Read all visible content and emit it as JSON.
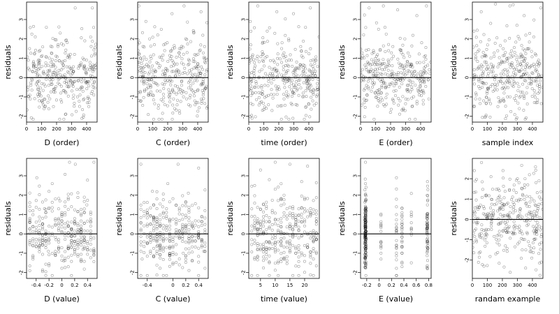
{
  "chart_data": [
    {
      "type": "scatter",
      "xlabel": "D (order)",
      "ylabel": "residuals",
      "xlim": [
        0,
        470
      ],
      "ylim": [
        -2.3,
        3.9
      ],
      "xticks": [
        0,
        100,
        200,
        300,
        400
      ],
      "yticks": [
        -2,
        -1,
        0,
        1,
        2,
        3
      ],
      "hline": 0,
      "pattern": "order",
      "x": [
        12,
        25,
        41,
        58,
        74,
        90,
        103,
        117,
        132,
        148,
        163,
        179,
        196,
        210,
        228,
        244,
        259,
        275,
        292,
        308,
        324,
        339,
        356,
        372,
        388,
        405,
        421,
        438,
        452,
        466
      ],
      "y": [
        0.9,
        -1.1,
        0.3,
        2.1,
        -0.6,
        1.4,
        -1.2,
        0.2,
        2.6,
        -0.4,
        0.8,
        -1.5,
        0.1,
        1.7,
        -0.8,
        0.5,
        -1.9,
        0.3,
        1.2,
        -0.3,
        3.6,
        -1.0,
        0.6,
        -0.5,
        1.9,
        -1.3,
        0.4,
        3.6,
        -0.2,
        0.7
      ]
    },
    {
      "type": "scatter",
      "xlabel": "C (order)",
      "ylabel": "residuals",
      "xlim": [
        0,
        470
      ],
      "ylim": [
        -2.3,
        3.9
      ],
      "xticks": [
        0,
        100,
        200,
        300,
        400
      ],
      "yticks": [
        -2,
        -1,
        0,
        1,
        2,
        3
      ],
      "hline": 0,
      "pattern": "order",
      "x": [
        8,
        22,
        38,
        55,
        70,
        86,
        101,
        118,
        134,
        150,
        166,
        181,
        197,
        213,
        229,
        246,
        262,
        278,
        293,
        309,
        326,
        342,
        357,
        374,
        390,
        406,
        422,
        437,
        454,
        467
      ],
      "y": [
        3.7,
        -1.2,
        0.5,
        2.9,
        -0.5,
        1.1,
        -0.9,
        0.3,
        2.2,
        -0.7,
        0.9,
        -1.4,
        1.8,
        -0.2,
        3.3,
        -1.6,
        0.4,
        1.5,
        -0.4,
        3.7,
        -1.1,
        0.7,
        -0.6,
        2.3,
        -1.3,
        0.2,
        3.4,
        -0.3,
        1.0,
        -1.5
      ]
    },
    {
      "type": "scatter",
      "xlabel": "time (order)",
      "ylabel": "residuals",
      "xlim": [
        0,
        470
      ],
      "ylim": [
        -2.3,
        3.9
      ],
      "xticks": [
        0,
        100,
        200,
        300,
        400
      ],
      "yticks": [
        -2,
        -1,
        0,
        1,
        2,
        3
      ],
      "hline": 0,
      "pattern": "order",
      "x": [
        10,
        27,
        43,
        60,
        76,
        92,
        107,
        123,
        139,
        155,
        171,
        187,
        203,
        219,
        235,
        251,
        266,
        283,
        298,
        314,
        330,
        346,
        362,
        378,
        394,
        410,
        426,
        442,
        457,
        468
      ],
      "y": [
        2.9,
        -0.8,
        0.6,
        3.7,
        -1.3,
        1.2,
        -0.4,
        2.4,
        0.1,
        -1.7,
        0.8,
        3.4,
        -0.6,
        1.5,
        -1.1,
        0.3,
        2.0,
        -0.3,
        3.3,
        -1.4,
        0.5,
        1.6,
        -0.8,
        2.6,
        -0.2,
        3.6,
        -1.2,
        0.9,
        -0.5,
        2.1
      ]
    },
    {
      "type": "scatter",
      "xlabel": "E (order)",
      "ylabel": "residuals",
      "xlim": [
        0,
        470
      ],
      "ylim": [
        -2.3,
        3.9
      ],
      "xticks": [
        0,
        100,
        200,
        300,
        400
      ],
      "yticks": [
        -2,
        -1,
        0,
        1,
        2,
        3
      ],
      "hline": 0,
      "pattern": "order",
      "x": [
        9,
        24,
        40,
        57,
        72,
        88,
        104,
        120,
        136,
        152,
        168,
        184,
        199,
        215,
        231,
        247,
        263,
        279,
        295,
        311,
        327,
        343,
        359,
        375,
        391,
        407,
        423,
        439,
        455,
        467
      ],
      "y": [
        1.0,
        -1.3,
        0.4,
        3.6,
        -0.7,
        1.3,
        -1.0,
        2.5,
        0.2,
        3.7,
        -0.5,
        0.9,
        -1.8,
        1.6,
        -0.3,
        3.5,
        -1.2,
        0.6,
        2.0,
        -0.4,
        1.1,
        -1.5,
        0.3,
        3.2,
        -0.9,
        1.8,
        -0.2,
        3.7,
        -1.1,
        0.8
      ]
    },
    {
      "type": "scatter",
      "xlabel": "sample index",
      "ylabel": "residuals",
      "xlim": [
        0,
        470
      ],
      "ylim": [
        -2.3,
        3.9
      ],
      "xticks": [
        0,
        100,
        200,
        300,
        400
      ],
      "yticks": [
        -2,
        -1,
        0,
        1,
        2,
        3
      ],
      "hline": 0,
      "pattern": "order",
      "x": [
        11,
        26,
        42,
        59,
        75,
        91,
        106,
        122,
        138,
        154,
        170,
        186,
        202,
        218,
        234,
        250,
        265,
        282,
        297,
        313,
        329,
        345,
        361,
        377,
        393,
        409,
        425,
        441,
        456,
        468
      ],
      "y": [
        2.4,
        -0.9,
        0.5,
        3.4,
        -1.2,
        1.1,
        -0.6,
        2.8,
        0.3,
        3.8,
        -1.5,
        0.7,
        -0.3,
        1.9,
        -1.0,
        3.7,
        -0.4,
        1.3,
        2.7,
        -1.6,
        0.6,
        3.2,
        -0.8,
        1.5,
        -0.2,
        2.1,
        -1.3,
        0.9,
        3.6,
        -0.5
      ]
    },
    {
      "type": "scatter",
      "xlabel": "D (value)",
      "ylabel": "residuals",
      "xlim": [
        -0.55,
        0.55
      ],
      "ylim": [
        -2.3,
        3.9
      ],
      "xticks": [
        -0.4,
        -0.2,
        0.0,
        0.2,
        0.4
      ],
      "yticks": [
        -2,
        -1,
        0,
        1,
        2,
        3
      ],
      "hline": 0,
      "pattern": "value",
      "x": [
        -0.5,
        -0.45,
        -0.39,
        -0.33,
        -0.27,
        -0.21,
        -0.15,
        -0.09,
        -0.03,
        0.03,
        0.09,
        0.12,
        0.15,
        0.21,
        0.27,
        0.33,
        0.39,
        0.45,
        0.5
      ],
      "y": [
        0.8,
        -1.2,
        2.9,
        -0.5,
        1.3,
        -0.9,
        2.6,
        -0.3,
        1.7,
        -1.4,
        0.6,
        3.7,
        -1.1,
        3.6,
        0.2,
        -0.8,
        1.5,
        0.4,
        3.7
      ]
    },
    {
      "type": "scatter",
      "xlabel": "C (value)",
      "ylabel": "residuals",
      "xlim": [
        -0.55,
        0.55
      ],
      "ylim": [
        -2.3,
        3.9
      ],
      "xticks": [
        -0.4,
        0.0,
        0.2,
        0.4
      ],
      "yticks": [
        -2,
        -1,
        0,
        1,
        2,
        3
      ],
      "hline": 0,
      "pattern": "value",
      "x": [
        -0.5,
        -0.48,
        -0.4,
        -0.32,
        -0.24,
        -0.16,
        -0.08,
        0.0,
        0.08,
        0.16,
        0.24,
        0.32,
        0.4,
        0.48,
        0.5
      ],
      "y": [
        3.6,
        -1.3,
        0.5,
        2.2,
        -0.6,
        1.4,
        2.6,
        -0.4,
        3.6,
        -1.0,
        2.1,
        0.3,
        3.4,
        -0.9,
        1.2
      ]
    },
    {
      "type": "scatter",
      "xlabel": "time (value)",
      "ylabel": "residuals",
      "xlim": [
        1,
        25
      ],
      "ylim": [
        -2.3,
        3.9
      ],
      "xticks": [
        5,
        10,
        15,
        20
      ],
      "yticks": [
        -2,
        -1,
        0,
        1,
        2,
        3
      ],
      "hline": 0,
      "pattern": "value",
      "x": [
        2,
        3,
        4,
        5,
        6,
        7,
        8,
        9,
        10,
        11,
        12,
        13,
        14,
        15,
        16,
        17,
        18,
        19,
        20,
        21,
        22,
        23,
        24
      ],
      "y": [
        0.9,
        2.5,
        -1.2,
        3.3,
        0.4,
        -0.8,
        2.8,
        1.1,
        3.7,
        -1.5,
        0.6,
        2.0,
        -0.4,
        3.6,
        1.4,
        -1.0,
        0.2,
        2.7,
        -0.6,
        3.5,
        1.0,
        -1.3,
        0.5
      ]
    },
    {
      "type": "scatter",
      "xlabel": "E (value)",
      "ylabel": "residuals",
      "xlim": [
        -0.3,
        0.84
      ],
      "ylim": [
        -2.3,
        3.9
      ],
      "xticks": [
        -0.2,
        0.0,
        0.2,
        0.4,
        0.6,
        0.8
      ],
      "yticks": [
        -2,
        -1,
        0,
        1,
        2,
        3
      ],
      "hline": 0,
      "pattern": "E-value",
      "x": [
        -0.22,
        -0.22,
        -0.22,
        -0.22,
        0.03,
        0.28,
        0.28,
        0.28,
        0.37,
        0.52,
        0.78,
        0.78,
        0.78
      ],
      "y": [
        3.7,
        2.6,
        -1.6,
        0.8,
        -1.3,
        1.4,
        2.9,
        -0.6,
        0.9,
        0.2,
        2.7,
        -1.8,
        1.5
      ]
    },
    {
      "type": "scatter",
      "xlabel": "randam example",
      "ylabel": "residuals",
      "xlim": [
        0,
        470
      ],
      "ylim": [
        -2.9,
        3.0
      ],
      "xticks": [
        0,
        100,
        200,
        300,
        400
      ],
      "yticks": [
        -2,
        -1,
        0,
        1,
        2
      ],
      "hline": 0,
      "pattern": "random",
      "x": [
        13,
        28,
        44,
        61,
        77,
        93,
        108,
        124,
        140,
        156,
        172,
        188,
        204,
        220,
        236,
        252,
        268,
        284,
        300,
        316,
        332,
        348,
        364,
        380,
        396,
        412,
        428,
        444,
        459,
        468
      ],
      "y": [
        2.4,
        -1.1,
        0.6,
        2.8,
        -2.3,
        1.2,
        -0.5,
        2.1,
        0.3,
        -1.7,
        1.5,
        -0.2,
        2.4,
        -1.3,
        0.8,
        -2.6,
        1.1,
        -0.7,
        2.0,
        0.4,
        -1.5,
        1.7,
        -0.3,
        2.2,
        -1.9,
        0.9,
        -0.6,
        1.9,
        -2.1,
        0.5
      ]
    }
  ]
}
